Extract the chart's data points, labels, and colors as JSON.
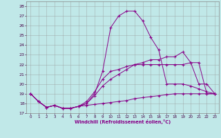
{
  "xlabel": "Windchill (Refroidissement éolien,°C)",
  "background_color": "#c0e8e8",
  "line_color": "#880088",
  "grid_color": "#999999",
  "xlim": [
    -0.5,
    23.5
  ],
  "ylim": [
    17,
    28.5
  ],
  "xticks": [
    0,
    1,
    2,
    3,
    4,
    5,
    6,
    7,
    8,
    9,
    10,
    11,
    12,
    13,
    14,
    15,
    16,
    17,
    18,
    19,
    20,
    21,
    22,
    23
  ],
  "yticks": [
    17,
    18,
    19,
    20,
    21,
    22,
    23,
    24,
    25,
    26,
    27,
    28
  ],
  "lines": [
    {
      "x": [
        0,
        1,
        2,
        3,
        4,
        5,
        6,
        7,
        8,
        9,
        10,
        11,
        12,
        13,
        14,
        15,
        16,
        17,
        18,
        19,
        20,
        21,
        22,
        23
      ],
      "y": [
        19.0,
        18.2,
        17.6,
        17.8,
        17.5,
        17.5,
        17.7,
        18.0,
        19.0,
        21.3,
        25.8,
        27.0,
        27.5,
        27.5,
        26.5,
        24.8,
        23.5,
        20.0,
        20.0,
        20.0,
        19.8,
        19.5,
        19.2,
        19.0
      ]
    },
    {
      "x": [
        0,
        1,
        2,
        3,
        4,
        5,
        6,
        7,
        8,
        9,
        10,
        11,
        12,
        13,
        14,
        15,
        16,
        17,
        18,
        19,
        20,
        21,
        22,
        23
      ],
      "y": [
        19.0,
        18.2,
        17.6,
        17.8,
        17.5,
        17.5,
        17.7,
        18.0,
        18.8,
        19.8,
        20.5,
        21.0,
        21.5,
        22.0,
        22.2,
        22.5,
        22.5,
        22.8,
        22.8,
        23.3,
        22.2,
        20.0,
        20.0,
        19.0
      ]
    },
    {
      "x": [
        0,
        1,
        2,
        3,
        4,
        5,
        6,
        7,
        8,
        9,
        10,
        11,
        12,
        13,
        14,
        15,
        16,
        17,
        18,
        19,
        20,
        21,
        22,
        23
      ],
      "y": [
        19.0,
        18.2,
        17.6,
        17.8,
        17.5,
        17.5,
        17.7,
        18.2,
        19.2,
        20.5,
        21.3,
        21.5,
        21.8,
        22.0,
        22.0,
        22.0,
        22.0,
        22.0,
        22.0,
        22.0,
        22.2,
        22.2,
        19.0,
        19.0
      ]
    },
    {
      "x": [
        0,
        1,
        2,
        3,
        4,
        5,
        6,
        7,
        8,
        9,
        10,
        11,
        12,
        13,
        14,
        15,
        16,
        17,
        18,
        19,
        20,
        21,
        22,
        23
      ],
      "y": [
        19.0,
        18.2,
        17.6,
        17.8,
        17.5,
        17.5,
        17.7,
        17.8,
        17.9,
        18.0,
        18.1,
        18.2,
        18.3,
        18.5,
        18.6,
        18.7,
        18.8,
        18.9,
        19.0,
        19.0,
        19.0,
        19.0,
        19.0,
        19.0
      ]
    }
  ]
}
